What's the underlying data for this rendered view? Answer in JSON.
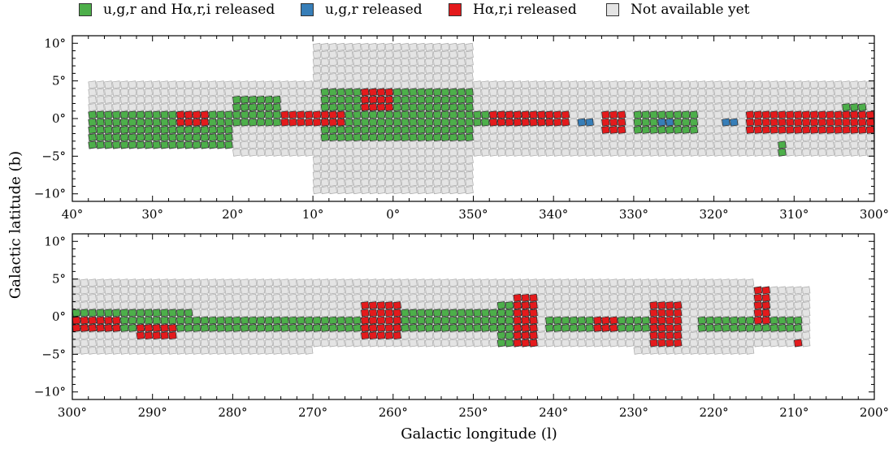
{
  "legend": {
    "items": [
      {
        "label": "u,g,r and Hα,r,i released",
        "color": "#4daf4a"
      },
      {
        "label": "u,g,r released",
        "color": "#377eb8"
      },
      {
        "label": "Hα,r,i released",
        "color": "#e41a1c"
      },
      {
        "label": "Not available yet",
        "color": "#e4e4e4"
      }
    ]
  },
  "axes": {
    "ylabel": "Galactic latitude (b)",
    "xlabel": "Galactic longitude (l)"
  },
  "chart_data": [
    {
      "type": "heatmap",
      "panel": "top",
      "xlim": [
        40,
        300
      ],
      "ylim": [
        -11,
        11
      ],
      "xticks": [
        40,
        30,
        20,
        10,
        0,
        350,
        340,
        330,
        320,
        310,
        300
      ],
      "xtick_labels": [
        "40°",
        "30°",
        "20°",
        "10°",
        "0°",
        "350°",
        "340°",
        "330°",
        "320°",
        "310°",
        "300°"
      ],
      "yticks": [
        10,
        5,
        0,
        -5,
        -10
      ],
      "ytick_labels": [
        "10°",
        "5°",
        "0°",
        "−5°",
        "−10°"
      ],
      "footprint": [
        {
          "l_from": 38,
          "l_to": 20,
          "b_min": -4,
          "b_max": 5
        },
        {
          "l_from": 20,
          "l_to": 10,
          "b_min": -5,
          "b_max": 5
        },
        {
          "l_from": 10,
          "l_to": 350,
          "b_min": -10,
          "b_max": 10
        },
        {
          "l_from": 350,
          "l_to": 330,
          "b_min": -5,
          "b_max": 5
        },
        {
          "l_from": 330,
          "l_to": 310,
          "b_min": -5,
          "b_max": 5
        },
        {
          "l_from": 310,
          "l_to": 300,
          "b_min": -5,
          "b_max": 5
        }
      ],
      "released_ugr_ha": [
        {
          "l_from": 38,
          "l_to": 20,
          "b_min": -4,
          "b_max": 1
        },
        {
          "l_from": 20,
          "l_to": 14,
          "b_min": -1,
          "b_max": 3
        },
        {
          "l_from": 9,
          "l_to": 350,
          "b_min": -3,
          "b_max": 4
        },
        {
          "l_from": 350,
          "l_to": 340,
          "b_min": -1,
          "b_max": 1
        },
        {
          "l_from": 330,
          "l_to": 322,
          "b_min": -2,
          "b_max": 1
        },
        {
          "l_from": 304,
          "l_to": 301,
          "b_min": 0,
          "b_max": 2
        },
        {
          "l_from": 312,
          "l_to": 311,
          "b_min": -5,
          "b_max": -3
        }
      ],
      "released_ugr": [
        {
          "l_from": 337,
          "l_to": 335,
          "b_min": -1,
          "b_max": 0
        },
        {
          "l_from": 327,
          "l_to": 325,
          "b_min": -1,
          "b_max": 0
        },
        {
          "l_from": 319,
          "l_to": 317,
          "b_min": -1,
          "b_max": 0
        }
      ],
      "released_ha": [
        {
          "l_from": 27,
          "l_to": 23,
          "b_min": -1,
          "b_max": 1
        },
        {
          "l_from": 14,
          "l_to": 6,
          "b_min": -1,
          "b_max": 1
        },
        {
          "l_from": 4,
          "l_to": 0,
          "b_min": 1,
          "b_max": 4
        },
        {
          "l_from": 348,
          "l_to": 338,
          "b_min": -1,
          "b_max": 1
        },
        {
          "l_from": 334,
          "l_to": 331,
          "b_min": -2,
          "b_max": 1
        },
        {
          "l_from": 316,
          "l_to": 300,
          "b_min": -2,
          "b_max": 1
        }
      ]
    },
    {
      "type": "heatmap",
      "panel": "bottom",
      "xlim": [
        300,
        200
      ],
      "ylim": [
        -11,
        11
      ],
      "xticks": [
        300,
        290,
        280,
        270,
        260,
        250,
        240,
        230,
        220,
        210,
        200
      ],
      "xtick_labels": [
        "300°",
        "290°",
        "280°",
        "270°",
        "260°",
        "250°",
        "240°",
        "230°",
        "220°",
        "210°",
        "200°"
      ],
      "yticks": [
        10,
        5,
        0,
        -5,
        -10
      ],
      "ytick_labels": [
        "10°",
        "5°",
        "0°",
        "−5°",
        "−10°"
      ],
      "footprint": [
        {
          "l_from": 300,
          "l_to": 285,
          "b_min": -5,
          "b_max": 5
        },
        {
          "l_from": 285,
          "l_to": 270,
          "b_min": -5,
          "b_max": 5
        },
        {
          "l_from": 270,
          "l_to": 250,
          "b_min": -4,
          "b_max": 5
        },
        {
          "l_from": 250,
          "l_to": 230,
          "b_min": -4,
          "b_max": 5
        },
        {
          "l_from": 230,
          "l_to": 215,
          "b_min": -5,
          "b_max": 5
        },
        {
          "l_from": 215,
          "l_to": 208,
          "b_min": -4,
          "b_max": 4
        }
      ],
      "released_ugr_ha": [
        {
          "l_from": 300,
          "l_to": 285,
          "b_min": -2,
          "b_max": 1
        },
        {
          "l_from": 285,
          "l_to": 262,
          "b_min": -2,
          "b_max": 0
        },
        {
          "l_from": 260,
          "l_to": 246,
          "b_min": -2,
          "b_max": 1
        },
        {
          "l_from": 247,
          "l_to": 242,
          "b_min": -4,
          "b_max": 2
        },
        {
          "l_from": 241,
          "l_to": 226,
          "b_min": -2,
          "b_max": 0
        },
        {
          "l_from": 222,
          "l_to": 209,
          "b_min": -2,
          "b_max": 0
        }
      ],
      "released_ugr": [
        {
          "l_from": 214,
          "l_to": 213,
          "b_min": 0,
          "b_max": 2
        }
      ],
      "released_ha": [
        {
          "l_from": 300,
          "l_to": 294,
          "b_min": -2,
          "b_max": 0
        },
        {
          "l_from": 292,
          "l_to": 287,
          "b_min": -3,
          "b_max": -1
        },
        {
          "l_from": 264,
          "l_to": 259,
          "b_min": -3,
          "b_max": 2
        },
        {
          "l_from": 245,
          "l_to": 242,
          "b_min": -4,
          "b_max": 3
        },
        {
          "l_from": 235,
          "l_to": 232,
          "b_min": -2,
          "b_max": 0
        },
        {
          "l_from": 228,
          "l_to": 224,
          "b_min": -4,
          "b_max": 2
        },
        {
          "l_from": 215,
          "l_to": 213,
          "b_min": -1,
          "b_max": 4
        },
        {
          "l_from": 210,
          "l_to": 209,
          "b_min": -4,
          "b_max": -3
        }
      ]
    }
  ]
}
